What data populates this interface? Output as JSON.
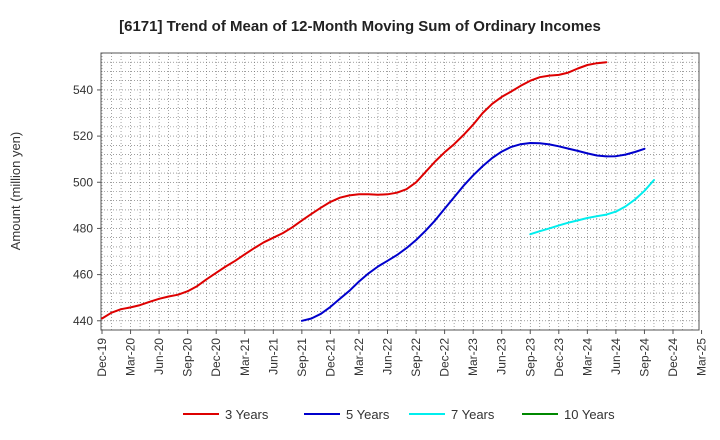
{
  "chart_data": {
    "type": "line",
    "title": "[6171]  Trend of Mean of 12-Month Moving Sum of Ordinary Incomes",
    "xlabel": "",
    "ylabel": "Amount (million yen)",
    "ylim": [
      436,
      556
    ],
    "yticks": [
      440,
      460,
      480,
      500,
      520,
      540
    ],
    "x_categories": [
      "Dec-19",
      "Mar-20",
      "Jun-20",
      "Sep-20",
      "Dec-20",
      "Mar-21",
      "Jun-21",
      "Sep-21",
      "Dec-21",
      "Mar-22",
      "Jun-22",
      "Sep-22",
      "Dec-22",
      "Mar-23",
      "Jun-23",
      "Sep-23",
      "Dec-23",
      "Mar-24",
      "Jun-24",
      "Sep-24",
      "Dec-24",
      "Mar-25"
    ],
    "grid": true,
    "legend_position": "bottom",
    "series": [
      {
        "name": "3 Years",
        "color": "#dd0000",
        "start_index": 0,
        "values": [
          441.0,
          443.5,
          445.0,
          445.8,
          446.8,
          448.2,
          449.5,
          450.5,
          451.3,
          452.8,
          455.0,
          458.0,
          460.8,
          463.5,
          466.0,
          468.8,
          471.5,
          474.0,
          476.0,
          478.0,
          480.5,
          483.5,
          486.3,
          489.0,
          491.5,
          493.3,
          494.3,
          494.8,
          494.8,
          494.6,
          494.8,
          495.5,
          497.0,
          500.0,
          504.5,
          509.0,
          513.0,
          516.5,
          520.5,
          525.0,
          530.0,
          534.0,
          537.0,
          539.3,
          541.8,
          544.0,
          545.5,
          546.2,
          546.5,
          547.5,
          549.3,
          550.8,
          551.6,
          552.0
        ]
      },
      {
        "name": "5 Years",
        "color": "#0000cc",
        "start_index": 21,
        "values": [
          440.0,
          441.0,
          443.0,
          446.0,
          449.5,
          453.0,
          457.0,
          460.5,
          463.5,
          466.0,
          468.5,
          471.5,
          475.0,
          479.0,
          483.5,
          488.5,
          493.5,
          498.5,
          503.0,
          507.0,
          510.5,
          513.3,
          515.3,
          516.5,
          517.0,
          516.9,
          516.4,
          515.6,
          514.6,
          513.6,
          512.5,
          511.6,
          511.2,
          511.3,
          512.0,
          513.1,
          514.5
        ]
      },
      {
        "name": "7 Years",
        "color": "#00eeee",
        "start_index": 45,
        "values": [
          477.5,
          478.8,
          480.0,
          481.3,
          482.5,
          483.5,
          484.5,
          485.3,
          486.0,
          487.3,
          489.5,
          492.5,
          496.3,
          501.0
        ]
      },
      {
        "name": "10 Years",
        "color": "#008800",
        "start_index": 0,
        "values": []
      }
    ]
  }
}
